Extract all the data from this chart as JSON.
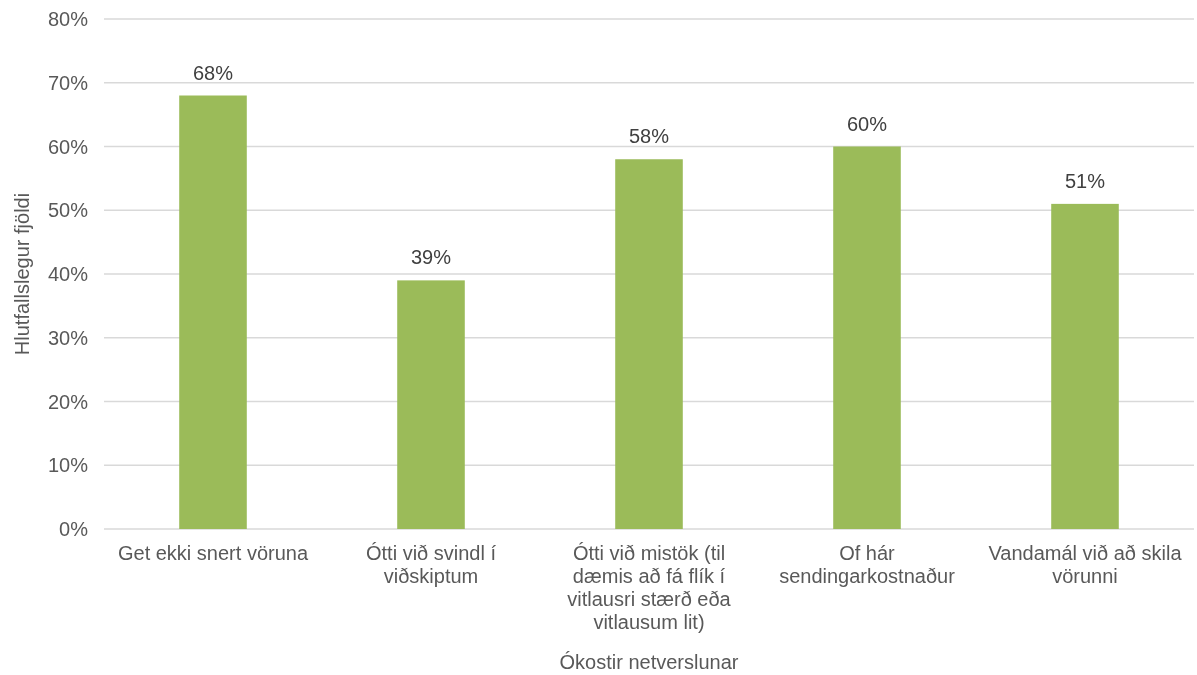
{
  "chart_data": {
    "type": "bar",
    "xlabel": "Ókostir netverslunar",
    "ylabel": "Hlutfallslegur fjöldi",
    "categories": [
      "Get ekki snert vöruna",
      "Ótti við svindl í viðskiptum",
      "Ótti við mistök (til dæmis að fá flík í vitlausri stærð eða vitlausum lit)",
      "Of hár sendingarkostnaður",
      "Vandamál við að skila vörunni"
    ],
    "values": [
      68,
      39,
      58,
      60,
      51
    ],
    "value_labels": [
      "68%",
      "39%",
      "58%",
      "60%",
      "51%"
    ],
    "color": "#9bbb59",
    "ylim": [
      0,
      80
    ],
    "yticks": [
      {
        "value": 0,
        "label": "0%"
      },
      {
        "value": 10,
        "label": "10%"
      },
      {
        "value": 20,
        "label": "20%"
      },
      {
        "value": 30,
        "label": "30%"
      },
      {
        "value": 40,
        "label": "40%"
      },
      {
        "value": 50,
        "label": "50%"
      },
      {
        "value": 60,
        "label": "60%"
      },
      {
        "value": 70,
        "label": "70%"
      },
      {
        "value": 80,
        "label": "80%"
      }
    ],
    "grid": "y"
  }
}
